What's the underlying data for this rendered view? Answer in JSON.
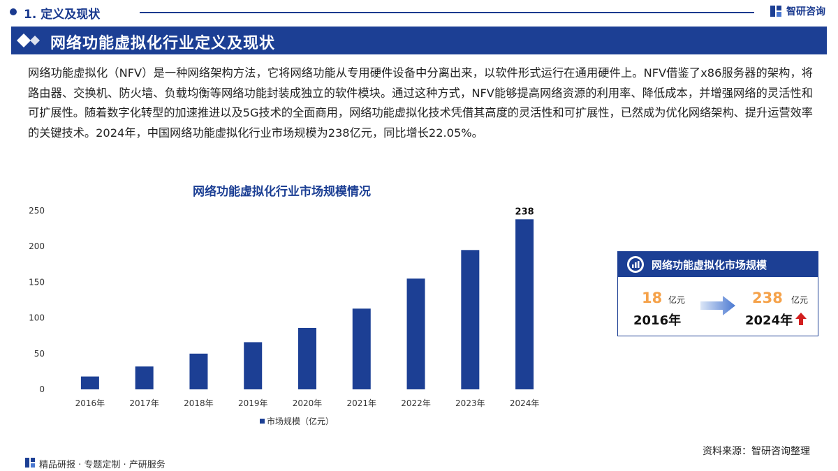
{
  "header": {
    "section_title": "1. 定义及现状",
    "brand_name": "智研咨询"
  },
  "banner": {
    "title": "网络功能虚拟化行业定义及现状"
  },
  "intro_text": "网络功能虚拟化（NFV）是一种网络架构方法，它将网络功能从专用硬件设备中分离出来，以软件形式运行在通用硬件上。NFV借鉴了x86服务器的架构，将路由器、交换机、防火墙、负载均衡等网络功能封装成独立的软件模块。通过这种方式，NFV能够提高网络资源的利用率、降低成本，并增强网络的灵活性和可扩展性。随着数字化转型的加速推进以及5G技术的全面商用，网络功能虚拟化技术凭借其高度的灵活性和可扩展性，已然成为优化网络架构、提升运营效率的关键技术。2024年，中国网络功能虚拟化行业市场规模为238亿元，同比增长22.05%。",
  "chart_data": {
    "type": "bar",
    "title": "网络功能虚拟化行业市场规模情况",
    "categories": [
      "2016年",
      "2017年",
      "2018年",
      "2019年",
      "2020年",
      "2021年",
      "2022年",
      "2023年",
      "2024年"
    ],
    "series": [
      {
        "name": "市场规模（亿元）",
        "values": [
          18,
          32,
          50,
          66,
          86,
          113,
          155,
          195,
          238
        ]
      }
    ],
    "data_labels": [
      null,
      null,
      null,
      null,
      null,
      null,
      null,
      null,
      "238"
    ],
    "ylim": [
      0,
      250
    ],
    "yticks": [
      0,
      50,
      100,
      150,
      200,
      250
    ],
    "bar_color": "#1c3f94",
    "grid": false,
    "legend_position": "bottom"
  },
  "infobox": {
    "title": "网络功能虚拟化市场规模",
    "start_value": "18",
    "start_unit": "亿元",
    "start_year": "2016年",
    "end_value": "238",
    "end_unit": "亿元",
    "end_year": "2024年",
    "icons": [
      "chart-badge-icon",
      "right-arrow-icon",
      "up-arrow-icon"
    ]
  },
  "source_text": "资料来源：智研咨询整理",
  "footer_text": "精品研报 · 专题定制 · 产研服务",
  "colors": {
    "primary": "#1c3f94",
    "accent": "#f5a24a",
    "up_arrow": "#d21f1f"
  }
}
